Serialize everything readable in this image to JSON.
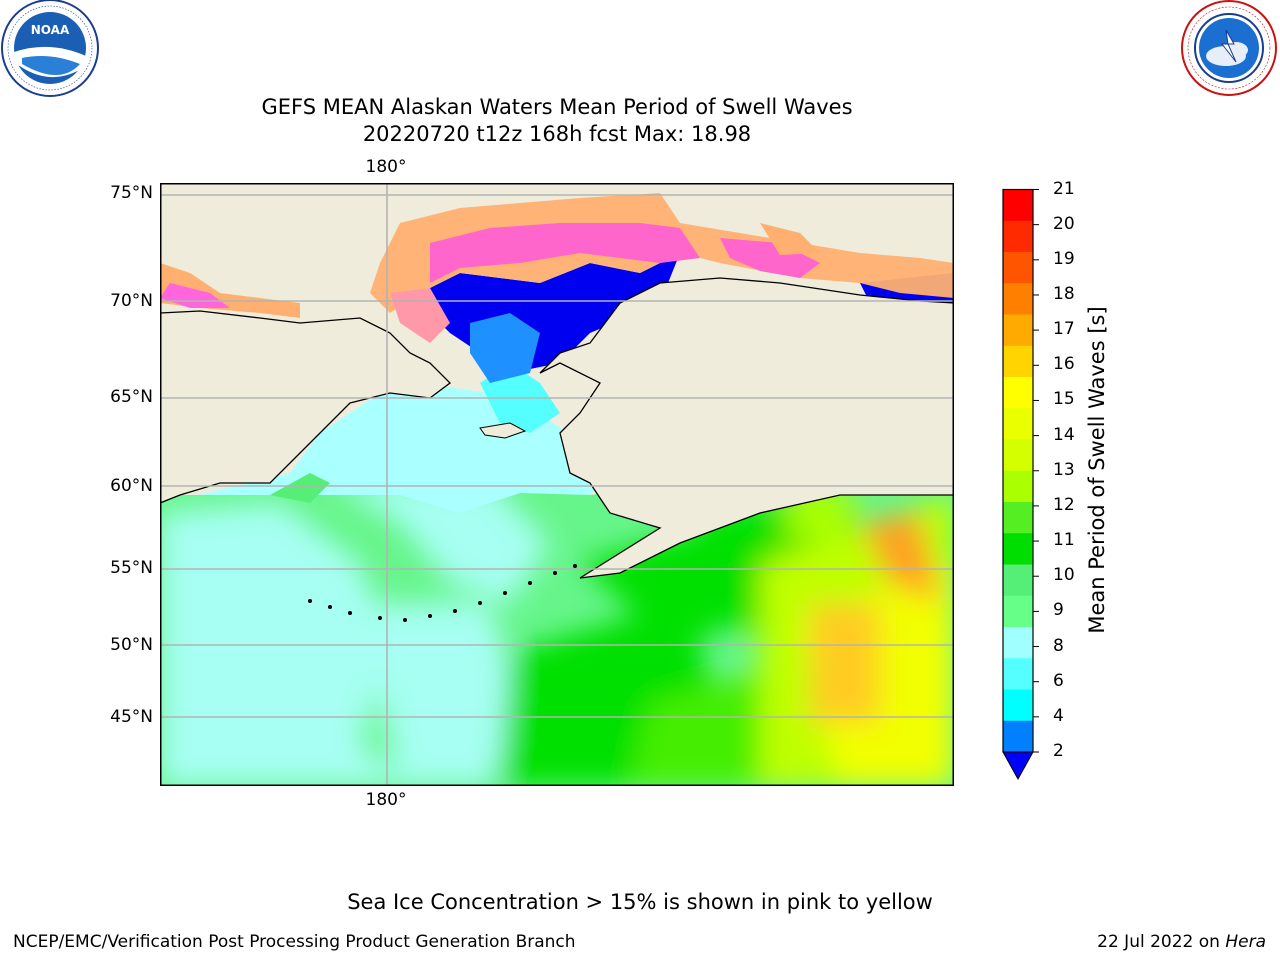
{
  "title": {
    "line1": "GEFS MEAN Alaskan Waters Mean Period of Swell Waves",
    "line2": "20220720 t12z 168h fcst   Max: 18.98"
  },
  "logos": {
    "left": {
      "name": "noaa-logo",
      "text": "NOAA",
      "ring_text": "NATIONAL OCEANIC AND ATMOSPHERIC ADMINISTRATION · U.S. DEPARTMENT OF COMMERCE"
    },
    "right": {
      "name": "nws-logo",
      "ring_text": "NATIONAL WEATHER SERVICE"
    }
  },
  "map": {
    "lat_labels": [
      "75°N",
      "70°N",
      "65°N",
      "60°N",
      "55°N",
      "50°N",
      "45°N"
    ],
    "lon_label_top": "180°",
    "lon_label_bottom": "180°"
  },
  "colorbar": {
    "title": "Mean Period of Swell Waves [s]",
    "ticks": [
      "21",
      "20",
      "19",
      "18",
      "17",
      "16",
      "15",
      "14",
      "13",
      "12",
      "11",
      "10",
      "9",
      "8",
      "6",
      "4",
      "2"
    ],
    "colors_top_to_bottom": [
      "#ff0000",
      "#ff2a00",
      "#ff5500",
      "#ff8000",
      "#ffaa00",
      "#ffd400",
      "#ffff00",
      "#eaff00",
      "#d4ff00",
      "#aaff00",
      "#55ee22",
      "#00dd00",
      "#55ee77",
      "#66ff88",
      "#a0ffff",
      "#55ffff",
      "#00ffff",
      "#0080ff"
    ],
    "extend_color": "#0000ff"
  },
  "note": "Sea Ice Concentration > 15% is shown in pink to yellow",
  "footer": {
    "left": "NCEP/EMC/Verification Post Processing Product Generation Branch",
    "date": "22 Jul 2022 on ",
    "machine": "Hera"
  }
}
